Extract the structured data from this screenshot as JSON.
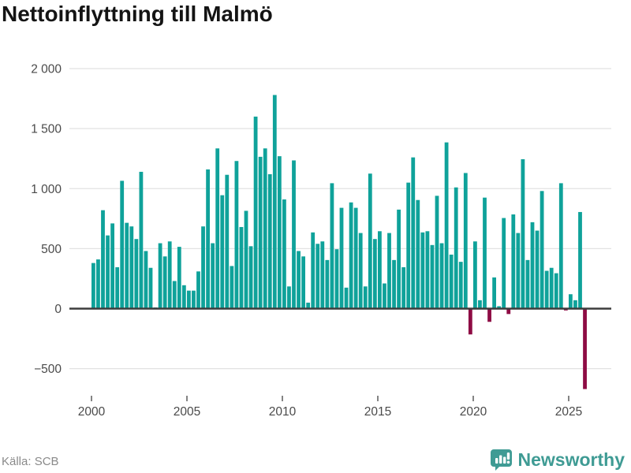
{
  "title": "Nettoinflyttning till Malmö",
  "source": "Källa: SCB",
  "logo": {
    "text": "Newsworthy",
    "icon": "bar-chart-speech-bubble",
    "color": "#3f9b94"
  },
  "chart_data": {
    "type": "bar",
    "title": "Nettoinflyttning till Malmö",
    "x_unit": "quarter",
    "start_year": 2000,
    "quarters_per_year": 4,
    "series": [
      {
        "name": "Nettoinflyttning",
        "values": [
          380,
          410,
          820,
          610,
          710,
          345,
          1065,
          715,
          685,
          580,
          1140,
          480,
          340,
          10,
          545,
          435,
          560,
          230,
          515,
          195,
          150,
          150,
          310,
          685,
          1160,
          545,
          1335,
          945,
          1115,
          355,
          1230,
          680,
          815,
          520,
          1600,
          1265,
          1335,
          1120,
          1780,
          1270,
          910,
          185,
          1235,
          480,
          435,
          50,
          635,
          540,
          560,
          405,
          1045,
          495,
          840,
          175,
          885,
          840,
          630,
          185,
          1125,
          580,
          645,
          210,
          630,
          405,
          825,
          345,
          1050,
          1260,
          905,
          635,
          645,
          530,
          940,
          545,
          1385,
          450,
          1010,
          390,
          1130,
          -215,
          560,
          70,
          925,
          -110,
          260,
          20,
          755,
          -45,
          785,
          630,
          1245,
          405,
          720,
          650,
          980,
          315,
          340,
          295,
          1045,
          -15,
          120,
          70,
          805,
          -670
        ]
      }
    ],
    "positive_color": "#0fa29a",
    "negative_color": "#8e0c44",
    "zero_line_color": "#3d3d3d",
    "grid_color": "#e2e2e2",
    "axis_text_color": "#4a4a4a",
    "grid": true,
    "legend": "none",
    "ylim": [
      -700,
      2000
    ],
    "y_ticks": [
      {
        "v": 2000,
        "label": "2 000"
      },
      {
        "v": 1500,
        "label": "1 500"
      },
      {
        "v": 1000,
        "label": "1 000"
      },
      {
        "v": 500,
        "label": "500"
      },
      {
        "v": 0,
        "label": "0"
      },
      {
        "v": -500,
        "label": "−500"
      }
    ],
    "x_ticks": [
      {
        "year": 2000,
        "label": "2000"
      },
      {
        "year": 2005,
        "label": "2005"
      },
      {
        "year": 2010,
        "label": "2010"
      },
      {
        "year": 2015,
        "label": "2015"
      },
      {
        "year": 2020,
        "label": "2020"
      },
      {
        "year": 2025,
        "label": "2025"
      }
    ]
  }
}
